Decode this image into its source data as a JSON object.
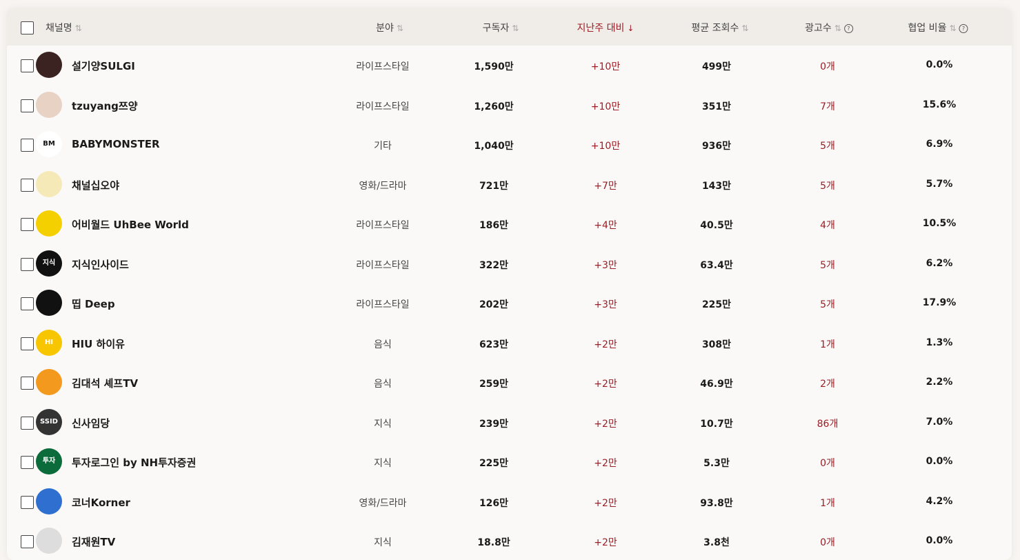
{
  "accent_color": "#9b1c24",
  "headers": {
    "channel": "채널명",
    "category": "분야",
    "subscribers": "구독자",
    "weekly_change": "지난주 대비",
    "avg_views": "평균 조회수",
    "ads": "광고수",
    "collab_ratio": "협업 비율"
  },
  "sort_active": "weekly_change",
  "rows": [
    {
      "name": "설기양SULGI",
      "category": "라이프스타일",
      "subscribers": "1,590만",
      "weekly_change": "+10만",
      "avg_views": "499만",
      "ads": "0개",
      "collab_ratio": "0.0%",
      "avatar_color": "#3a2320"
    },
    {
      "name": "tzuyang쯔양",
      "category": "라이프스타일",
      "subscribers": "1,260만",
      "weekly_change": "+10만",
      "avg_views": "351만",
      "ads": "7개",
      "collab_ratio": "15.6%",
      "avatar_color": "#e8d2c4"
    },
    {
      "name": "BABYMONSTER",
      "category": "기타",
      "subscribers": "1,040만",
      "weekly_change": "+10만",
      "avg_views": "936만",
      "ads": "5개",
      "collab_ratio": "6.9%",
      "avatar_color": "#ffffff",
      "avatar_text": "BM"
    },
    {
      "name": "채널십오야",
      "category": "영화/드라마",
      "subscribers": "721만",
      "weekly_change": "+7만",
      "avg_views": "143만",
      "ads": "5개",
      "collab_ratio": "5.7%",
      "avatar_color": "#f6e9b8"
    },
    {
      "name": "어비월드 UhBee World",
      "category": "라이프스타일",
      "subscribers": "186만",
      "weekly_change": "+4만",
      "avg_views": "40.5만",
      "ads": "4개",
      "collab_ratio": "10.5%",
      "avatar_color": "#f5d000"
    },
    {
      "name": "지식인사이드",
      "category": "라이프스타일",
      "subscribers": "322만",
      "weekly_change": "+3만",
      "avg_views": "63.4만",
      "ads": "5개",
      "collab_ratio": "6.2%",
      "avatar_color": "#111111",
      "avatar_text": "지식"
    },
    {
      "name": "띱 Deep",
      "category": "라이프스타일",
      "subscribers": "202만",
      "weekly_change": "+3만",
      "avg_views": "225만",
      "ads": "5개",
      "collab_ratio": "17.9%",
      "avatar_color": "#111111"
    },
    {
      "name": "HIU 하이유",
      "category": "음식",
      "subscribers": "623만",
      "weekly_change": "+2만",
      "avg_views": "308만",
      "ads": "1개",
      "collab_ratio": "1.3%",
      "avatar_color": "#f7c600",
      "avatar_text": "HI"
    },
    {
      "name": "김대석 셰프TV",
      "category": "음식",
      "subscribers": "259만",
      "weekly_change": "+2만",
      "avg_views": "46.9만",
      "ads": "2개",
      "collab_ratio": "2.2%",
      "avatar_color": "#f39a1e"
    },
    {
      "name": "신사임당",
      "category": "지식",
      "subscribers": "239만",
      "weekly_change": "+2만",
      "avg_views": "10.7만",
      "ads": "86개",
      "collab_ratio": "7.0%",
      "avatar_color": "#333333",
      "avatar_text": "SSID"
    },
    {
      "name": "투자로그인 by NH투자증권",
      "category": "지식",
      "subscribers": "225만",
      "weekly_change": "+2만",
      "avg_views": "5.3만",
      "ads": "0개",
      "collab_ratio": "0.0%",
      "avatar_color": "#0c6b3a",
      "avatar_text": "투자"
    },
    {
      "name": "코너Korner",
      "category": "영화/드라마",
      "subscribers": "126만",
      "weekly_change": "+2만",
      "avg_views": "93.8만",
      "ads": "1개",
      "collab_ratio": "4.2%",
      "avatar_color": "#2f6fd0"
    },
    {
      "name": "김재원TV",
      "category": "지식",
      "subscribers": "18.8만",
      "weekly_change": "+2만",
      "avg_views": "3.8천",
      "ads": "0개",
      "collab_ratio": "0.0%",
      "avatar_color": "#dddddd"
    }
  ]
}
